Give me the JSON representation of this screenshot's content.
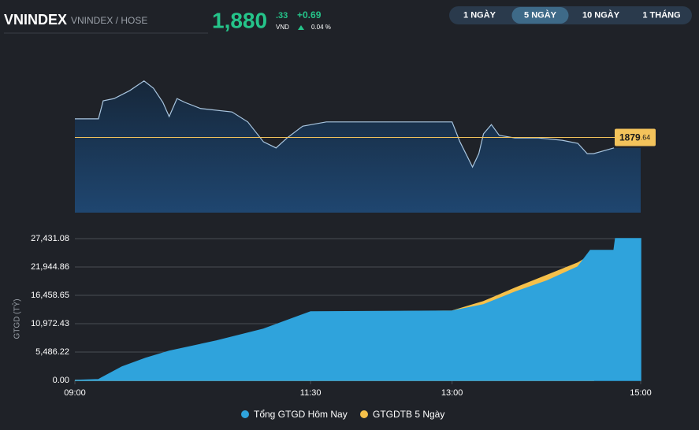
{
  "header": {
    "symbol": "VNINDEX",
    "exchange": "VNINDEX / HOSE",
    "price_int": "1,880",
    "price_dec": ".33",
    "currency": "VND",
    "change": "+0.69",
    "change_pct": "0.04 %"
  },
  "tabs": [
    "1 NGÀY",
    "5 NGÀY",
    "10 NGÀY",
    "1 THÁNG"
  ],
  "active_tab": 1,
  "chart_data": [
    {
      "type": "line",
      "color": "#a9c6e0",
      "fill": "#1c3a5c",
      "x": [
        540,
        555,
        558,
        565,
        575,
        580,
        584,
        590,
        596,
        600,
        605,
        610,
        620,
        640,
        650,
        660,
        668,
        675,
        685,
        700,
        720,
        780,
        785,
        790,
        793,
        797,
        800,
        805,
        810,
        820,
        835,
        850,
        860,
        866,
        870,
        883
      ],
      "values": [
        1884.5,
        1884.5,
        1889.2,
        1889.8,
        1891.9,
        1893.3,
        1894.4,
        1892.5,
        1888.8,
        1885.1,
        1889.8,
        1888.8,
        1887.2,
        1886.3,
        1883.7,
        1878.5,
        1876.9,
        1879.5,
        1882.6,
        1883.7,
        1883.7,
        1883.7,
        1878.5,
        1874.4,
        1871.9,
        1875.4,
        1880.6,
        1883.0,
        1880.2,
        1879.5,
        1879.5,
        1878.9,
        1878.1,
        1875.4,
        1875.4,
        1876.9
      ],
      "xlim": [
        540,
        900
      ],
      "ylim": [
        1860,
        1896
      ],
      "reference": {
        "value": 1879.64,
        "label_int": "1879",
        "label_dec": ".64",
        "color": "#f3c35b"
      }
    },
    {
      "type": "area",
      "y_label": "GTGD (TỶ)",
      "xlim": [
        540,
        900
      ],
      "ylim": [
        0,
        27431.08
      ],
      "xticks": [
        {
          "value": 540,
          "label": "09:00"
        },
        {
          "value": 690,
          "label": "11:30"
        },
        {
          "value": 780,
          "label": "13:00"
        },
        {
          "value": 900,
          "label": "15:00"
        }
      ],
      "yticks": [
        {
          "value": 0,
          "label": "0.00"
        },
        {
          "value": 5486.22,
          "label": "5,486.22"
        },
        {
          "value": 10972.43,
          "label": "10,972.43"
        },
        {
          "value": 16458.65,
          "label": "16,458.65"
        },
        {
          "value": 21944.86,
          "label": "21,944.86"
        },
        {
          "value": 27431.08,
          "label": "27,431.08"
        }
      ],
      "grid": true,
      "series": [
        {
          "name": "Tổng GTGD Hôm Nay",
          "color": "#2fa3dc",
          "x": [
            540,
            555,
            570,
            585,
            600,
            630,
            660,
            690,
            780,
            800,
            820,
            840,
            860,
            868,
            883,
            884,
            900
          ],
          "values": [
            0,
            152,
            2591,
            4267,
            5639,
            7620,
            9906,
            13259,
            13411,
            14630,
            17069,
            19202,
            21946,
            25146,
            25146,
            27431,
            27431
          ]
        },
        {
          "name": "GTGDTB 5 Ngày",
          "color": "#f5c04a",
          "x": [
            540,
            555,
            570,
            585,
            600,
            630,
            660,
            690,
            780,
            800,
            820,
            840,
            860,
            870
          ],
          "values": [
            0,
            0,
            2438,
            3962,
            5334,
            7315,
            9601,
            13106,
            13411,
            15240,
            17831,
            20269,
            22708,
            24536
          ]
        }
      ]
    }
  ]
}
